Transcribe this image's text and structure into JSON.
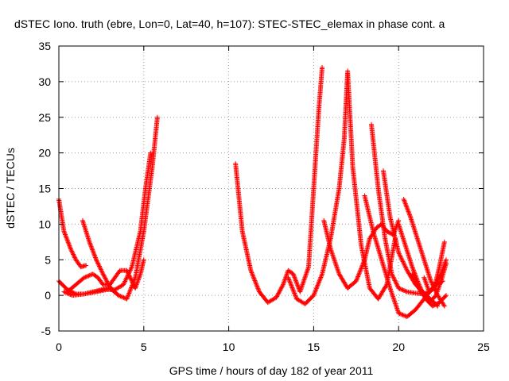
{
  "chart_data": {
    "type": "scatter",
    "title": "dSTEC Iono. truth (ebre, Lon=0, Lat=40, h=107): STEC-STEC_elemax in phase cont. a",
    "xlabel": "GPS time / hours of day 182 of year 2011",
    "ylabel": "dSTEC  / TECUs",
    "xlim": [
      0,
      25
    ],
    "ylim": [
      -5,
      35
    ],
    "x_ticks": [
      0,
      5,
      10,
      15,
      20,
      25
    ],
    "y_ticks": [
      -5,
      0,
      5,
      10,
      15,
      20,
      25,
      30,
      35
    ],
    "x_tick_labels": [
      "0",
      "5",
      "10",
      "15",
      "20",
      "25"
    ],
    "y_tick_labels": [
      "-5",
      "0",
      "5",
      "10",
      "15",
      "20",
      "25",
      "30",
      "35"
    ],
    "grid": true,
    "marker": "plus",
    "color": "#ff0000",
    "arcs": [
      {
        "x": [
          0.0,
          0.3,
          0.7,
          1.0,
          1.3,
          1.6
        ],
        "y": [
          13.5,
          9.0,
          6.5,
          5.0,
          4.0,
          4.2
        ]
      },
      {
        "x": [
          0.0,
          0.5,
          1.0,
          1.5,
          2.0,
          2.5,
          3.0,
          3.3,
          3.5,
          4.0,
          4.5,
          5.0,
          5.5,
          5.8
        ],
        "y": [
          2.0,
          0.8,
          0.2,
          0.2,
          0.5,
          0.8,
          1.0,
          0.5,
          0.0,
          -0.5,
          2.5,
          9.0,
          18.0,
          25.0
        ]
      },
      {
        "x": [
          1.4,
          1.8,
          2.2,
          2.6,
          3.0,
          3.3
        ],
        "y": [
          10.5,
          7.5,
          5.0,
          3.0,
          1.2,
          0.4
        ]
      },
      {
        "x": [
          0.3,
          0.8,
          1.5,
          2.2,
          2.8,
          3.3,
          3.8,
          4.3,
          4.8,
          5.1,
          5.4
        ],
        "y": [
          0.5,
          0.0,
          0.2,
          0.5,
          0.8,
          0.8,
          1.5,
          4.0,
          9.0,
          15.0,
          20.0
        ]
      },
      {
        "x": [
          0.5,
          1.0,
          1.5,
          2.0,
          2.3,
          2.6,
          3.0,
          3.3,
          3.6,
          4.0,
          4.3,
          4.5,
          4.8,
          5.0
        ],
        "y": [
          0.5,
          1.5,
          2.5,
          3.0,
          2.5,
          1.5,
          1.5,
          2.5,
          3.5,
          3.5,
          2.0,
          1.0,
          3.0,
          5.0
        ]
      },
      {
        "x": [
          10.4,
          10.8,
          11.3,
          11.8,
          12.3,
          12.8,
          13.2,
          13.5,
          13.8,
          14.2,
          14.7,
          15.0,
          15.3,
          15.5
        ],
        "y": [
          18.5,
          9.0,
          3.5,
          0.5,
          -1.0,
          -0.3,
          1.5,
          3.5,
          3.0,
          0.5,
          4.0,
          15.0,
          26.0,
          32.0
        ]
      },
      {
        "x": [
          13.5,
          14.0,
          14.5,
          15.0,
          15.5,
          16.0,
          16.5,
          16.8,
          17.0,
          17.3,
          17.8,
          18.3,
          18.8,
          19.3,
          19.8
        ],
        "y": [
          2.5,
          -0.5,
          -1.2,
          0.0,
          3.0,
          8.0,
          15.0,
          22.0,
          31.5,
          18.0,
          7.0,
          1.0,
          -0.5,
          1.5,
          8.0
        ]
      },
      {
        "x": [
          15.6,
          16.0,
          16.5,
          17.0,
          17.5,
          18.0,
          18.3,
          18.7,
          19.0,
          19.3,
          19.7,
          20.0
        ],
        "y": [
          10.5,
          6.5,
          3.0,
          1.0,
          2.0,
          5.0,
          8.0,
          9.5,
          10.0,
          9.0,
          8.5,
          10.5
        ]
      },
      {
        "x": [
          18.4,
          18.8,
          19.2,
          19.6,
          20.0,
          20.5,
          21.0,
          21.5,
          21.8,
          22.2,
          22.6
        ],
        "y": [
          24.0,
          15.0,
          8.0,
          3.0,
          1.0,
          0.5,
          0.3,
          0.2,
          0.5,
          1.5,
          2.0
        ]
      },
      {
        "x": [
          18.0,
          18.5,
          19.0,
          19.5,
          20.0,
          20.5,
          21.0,
          21.5,
          22.0,
          22.5,
          22.8
        ],
        "y": [
          14.0,
          9.0,
          5.0,
          1.0,
          -2.5,
          -3.0,
          -2.0,
          -0.5,
          1.0,
          3.0,
          5.0
        ]
      },
      {
        "x": [
          19.1,
          19.5,
          20.0,
          20.5,
          21.0,
          21.5,
          22.0,
          22.3
        ],
        "y": [
          17.5,
          11.0,
          6.0,
          3.5,
          1.5,
          0.3,
          -0.8,
          -1.5
        ]
      },
      {
        "x": [
          20.0,
          20.4,
          20.8,
          21.2,
          21.6,
          22.0,
          22.4,
          22.8
        ],
        "y": [
          10.0,
          7.0,
          4.0,
          1.5,
          -0.5,
          -1.5,
          -1.0,
          0.0
        ]
      },
      {
        "x": [
          20.3,
          20.7,
          21.1,
          21.5,
          21.9,
          22.3,
          22.7
        ],
        "y": [
          13.5,
          11.0,
          8.0,
          5.0,
          2.0,
          0.0,
          -1.5
        ]
      },
      {
        "x": [
          20.8,
          21.3,
          21.8,
          22.2,
          22.5,
          22.8
        ],
        "y": [
          3.0,
          0.5,
          -1.0,
          0.0,
          2.0,
          4.5
        ]
      },
      {
        "x": [
          21.5,
          21.8,
          22.1,
          22.4,
          22.7
        ],
        "y": [
          2.5,
          0.5,
          1.0,
          4.0,
          7.5
        ]
      }
    ]
  }
}
